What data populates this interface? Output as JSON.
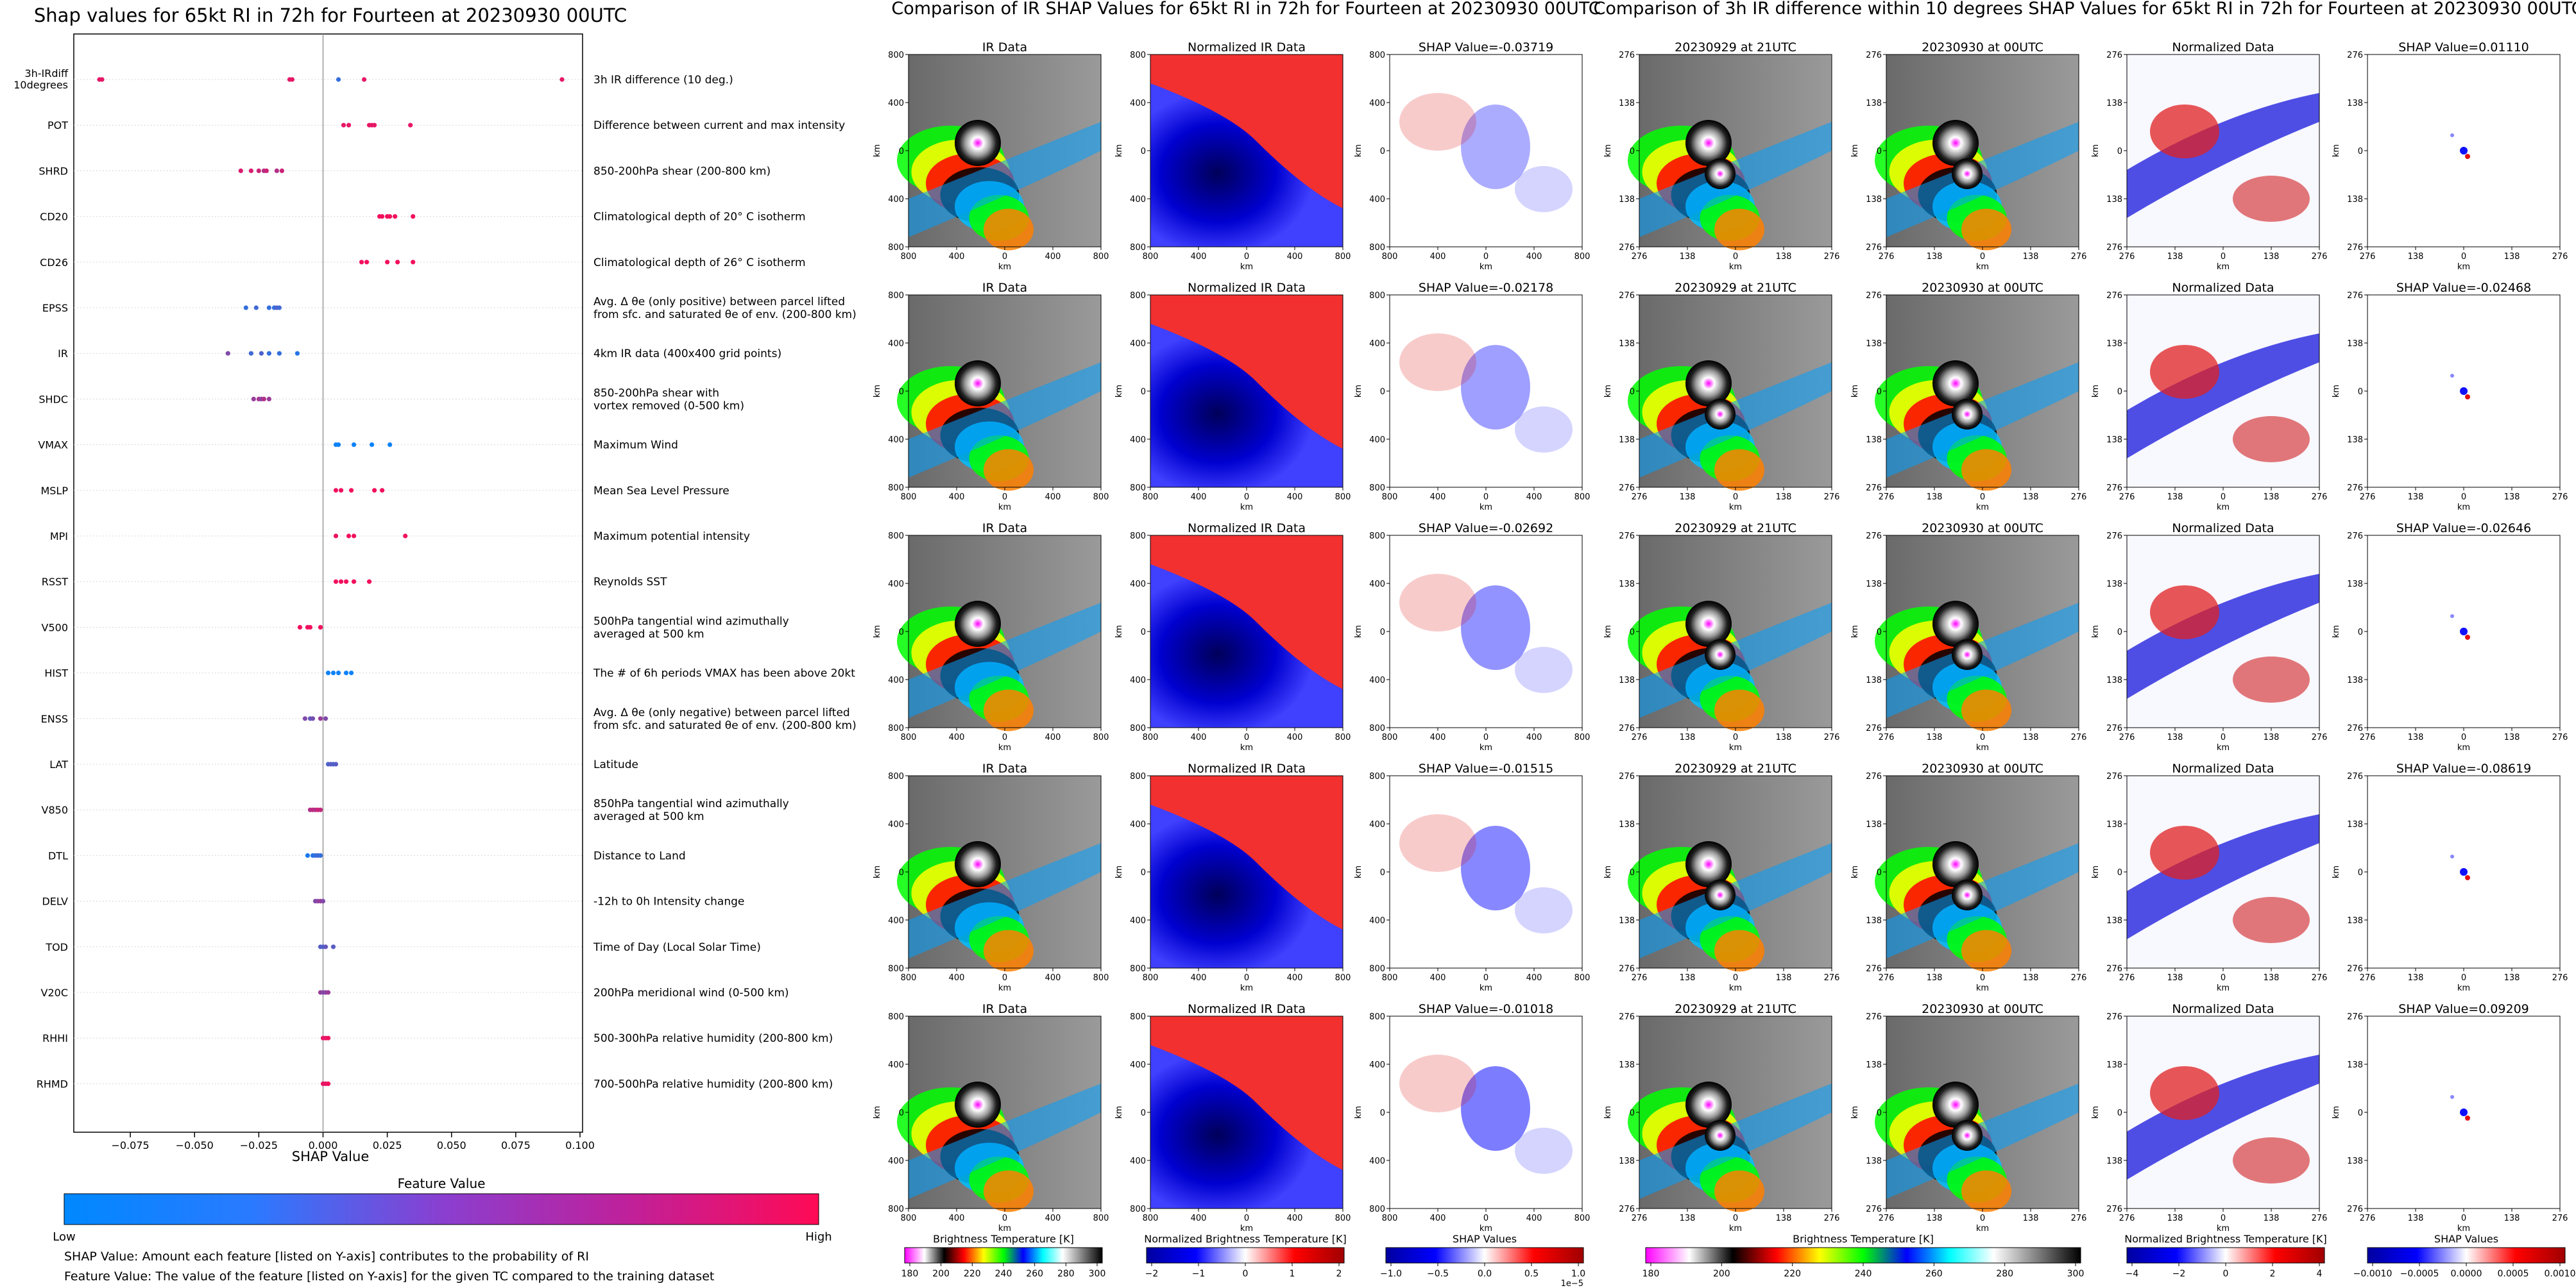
{
  "chart_data": [
    {
      "type": "scatter",
      "title": "Shap values for 65kt RI in 72h for Fourteen at 20230930 00UTC",
      "xlabel": "SHAP Value",
      "xlim": [
        -0.097,
        0.101
      ],
      "xticks": [
        -0.075,
        -0.05,
        -0.025,
        0.0,
        0.025,
        0.05,
        0.075,
        0.1
      ],
      "xtick_labels": [
        "−0.075",
        "−0.050",
        "−0.025",
        "0.000",
        "0.025",
        "0.050",
        "0.075",
        "0.100"
      ],
      "colorbar": {
        "title": "Feature Value",
        "low_label": "Low",
        "high_label": "High",
        "stops": [
          "#0088ff",
          "#2a7aff",
          "#8a3fd0",
          "#c0209a",
          "#ff0a55"
        ]
      },
      "features": [
        {
          "name": "3h-IRdiff\n10degrees",
          "desc": "3h IR difference (10 deg.)",
          "points": [
            [
              -0.087,
              0.9
            ],
            [
              -0.086,
              0.9
            ],
            [
              -0.013,
              0.9
            ],
            [
              -0.012,
              0.9
            ],
            [
              0.006,
              0.2
            ],
            [
              0.016,
              0.9
            ],
            [
              0.093,
              0.9
            ]
          ]
        },
        {
          "name": "POT",
          "desc": "Difference between current and max intensity",
          "points": [
            [
              0.008,
              0.9
            ],
            [
              0.01,
              0.9
            ],
            [
              0.018,
              0.9
            ],
            [
              0.019,
              0.9
            ],
            [
              0.02,
              0.9
            ],
            [
              0.034,
              0.9
            ]
          ]
        },
        {
          "name": "SHRD",
          "desc": "850-200hPa shear (200-800 km)",
          "points": [
            [
              -0.032,
              0.85
            ],
            [
              -0.028,
              0.85
            ],
            [
              -0.025,
              0.8
            ],
            [
              -0.023,
              0.7
            ],
            [
              -0.022,
              0.8
            ],
            [
              -0.018,
              0.7
            ],
            [
              -0.016,
              0.8
            ]
          ]
        },
        {
          "name": "CD20",
          "desc": "Climatological depth of 20° C isotherm",
          "points": [
            [
              0.022,
              0.95
            ],
            [
              0.023,
              0.95
            ],
            [
              0.025,
              0.95
            ],
            [
              0.026,
              0.95
            ],
            [
              0.028,
              0.95
            ],
            [
              0.035,
              0.95
            ]
          ]
        },
        {
          "name": "CD26",
          "desc": "Climatological depth of 26° C isotherm",
          "points": [
            [
              0.015,
              0.95
            ],
            [
              0.017,
              0.95
            ],
            [
              0.025,
              0.95
            ],
            [
              0.029,
              0.95
            ],
            [
              0.035,
              0.95
            ]
          ]
        },
        {
          "name": "EPSS",
          "desc": "Avg. Δ θe (only positive) between parcel lifted\nfrom sfc. and saturated θe of env. (200-800 km)",
          "points": [
            [
              -0.03,
              0.2
            ],
            [
              -0.026,
              0.25
            ],
            [
              -0.021,
              0.2
            ],
            [
              -0.019,
              0.2
            ],
            [
              -0.018,
              0.3
            ],
            [
              -0.017,
              0.25
            ]
          ]
        },
        {
          "name": "IR",
          "desc": "4km IR data (400x400 grid points)",
          "points": [
            [
              -0.037,
              0.5
            ],
            [
              -0.028,
              0.25
            ],
            [
              -0.024,
              0.3
            ],
            [
              -0.021,
              0.2
            ],
            [
              -0.017,
              0.2
            ],
            [
              -0.01,
              0.15
            ]
          ]
        },
        {
          "name": "SHDC",
          "desc": "850-200hPa shear with\nvortex removed (0-500 km)",
          "points": [
            [
              -0.027,
              0.6
            ],
            [
              -0.025,
              0.65
            ],
            [
              -0.024,
              0.55
            ],
            [
              -0.023,
              0.7
            ],
            [
              -0.021,
              0.6
            ]
          ]
        },
        {
          "name": "VMAX",
          "desc": "Maximum Wind",
          "points": [
            [
              0.005,
              0.05
            ],
            [
              0.006,
              0.05
            ],
            [
              0.012,
              0.05
            ],
            [
              0.019,
              0.05
            ],
            [
              0.026,
              0.05
            ]
          ]
        },
        {
          "name": "MSLP",
          "desc": "Mean Sea Level Pressure",
          "points": [
            [
              0.005,
              0.95
            ],
            [
              0.007,
              0.95
            ],
            [
              0.011,
              0.95
            ],
            [
              0.02,
              0.95
            ],
            [
              0.023,
              0.95
            ]
          ]
        },
        {
          "name": "MPI",
          "desc": "Maximum potential intensity",
          "points": [
            [
              0.005,
              0.95
            ],
            [
              0.01,
              0.95
            ],
            [
              0.012,
              0.95
            ],
            [
              0.032,
              0.95
            ]
          ]
        },
        {
          "name": "RSST",
          "desc": "Reynolds SST",
          "points": [
            [
              0.005,
              0.95
            ],
            [
              0.007,
              0.95
            ],
            [
              0.009,
              0.95
            ],
            [
              0.012,
              0.95
            ],
            [
              0.018,
              0.95
            ]
          ]
        },
        {
          "name": "V500",
          "desc": "500hPa tangential wind azimuthally\naveraged at 500 km",
          "points": [
            [
              -0.009,
              0.95
            ],
            [
              -0.006,
              0.95
            ],
            [
              -0.005,
              0.95
            ],
            [
              -0.001,
              0.95
            ]
          ]
        },
        {
          "name": "HIST",
          "desc": "The # of 6h periods VMAX has been above 20kt",
          "points": [
            [
              0.002,
              0.05
            ],
            [
              0.004,
              0.05
            ],
            [
              0.006,
              0.05
            ],
            [
              0.009,
              0.05
            ],
            [
              0.011,
              0.05
            ]
          ]
        },
        {
          "name": "ENSS",
          "desc": "Avg. Δ θe (only negative) between parcel lifted\nfrom sfc. and saturated θe of env. (200-800 km)",
          "points": [
            [
              -0.007,
              0.5
            ],
            [
              -0.005,
              0.4
            ],
            [
              -0.004,
              0.45
            ],
            [
              -0.001,
              0.6
            ],
            [
              0.001,
              0.5
            ]
          ]
        },
        {
          "name": "LAT",
          "desc": "Latitude",
          "points": [
            [
              0.002,
              0.3
            ],
            [
              0.003,
              0.35
            ],
            [
              0.004,
              0.3
            ],
            [
              0.005,
              0.35
            ]
          ]
        },
        {
          "name": "V850",
          "desc": "850hPa tangential wind azimuthally\naveraged at 500 km",
          "points": [
            [
              -0.005,
              0.7
            ],
            [
              -0.004,
              0.75
            ],
            [
              -0.003,
              0.7
            ],
            [
              -0.002,
              0.8
            ],
            [
              -0.001,
              0.75
            ]
          ]
        },
        {
          "name": "DTL",
          "desc": "Distance to Land",
          "points": [
            [
              -0.006,
              0.1
            ],
            [
              -0.004,
              0.15
            ],
            [
              -0.003,
              0.2
            ],
            [
              -0.002,
              0.25
            ],
            [
              -0.001,
              0.2
            ]
          ]
        },
        {
          "name": "DELV",
          "desc": "-12h to 0h Intensity change",
          "points": [
            [
              -0.003,
              0.5
            ],
            [
              -0.002,
              0.55
            ],
            [
              -0.001,
              0.6
            ],
            [
              0.0,
              0.5
            ]
          ]
        },
        {
          "name": "TOD",
          "desc": "Time of Day (Local Solar Time)",
          "points": [
            [
              -0.001,
              0.35
            ],
            [
              0.0,
              0.3
            ],
            [
              0.001,
              0.4
            ],
            [
              0.004,
              0.35
            ]
          ]
        },
        {
          "name": "V20C",
          "desc": "200hPa meridional wind (0-500 km)",
          "points": [
            [
              -0.001,
              0.6
            ],
            [
              0.0,
              0.5
            ],
            [
              0.001,
              0.55
            ],
            [
              0.002,
              0.6
            ]
          ]
        },
        {
          "name": "RHHI",
          "desc": "500-300hPa relative humidity (200-800 km)",
          "points": [
            [
              0.0,
              0.9
            ],
            [
              0.001,
              0.9
            ],
            [
              0.002,
              0.95
            ]
          ]
        },
        {
          "name": "RHMD",
          "desc": "700-500hPa relative humidity (200-800 km)",
          "points": [
            [
              0.0,
              0.9
            ],
            [
              0.001,
              0.9
            ],
            [
              0.002,
              0.95
            ]
          ]
        }
      ]
    },
    {
      "type": "heatmap",
      "title": "Comparison of IR SHAP Values for 65kt RI in 72h for Fourteen at 20230930 00UTC",
      "column_titles": [
        "IR Data",
        "Normalized IR Data"
      ],
      "shap_titles": [
        "SHAP Value=-0.03719",
        "SHAP Value=-0.02178",
        "SHAP Value=-0.02692",
        "SHAP Value=-0.01515",
        "SHAP Value=-0.01018"
      ],
      "axis_label": "km",
      "yticks": [
        "800",
        "400",
        "0",
        "400",
        "800"
      ],
      "xticks": [
        "800",
        "400",
        "0",
        "400",
        "800"
      ]
    },
    {
      "type": "heatmap",
      "title": "Comparison of 3h IR difference within 10 degrees SHAP Values for 65kt RI in 72h for Fourteen at 20230930 00UTC",
      "column_titles": [
        "20230929 at 21UTC",
        "20230930 at 00UTC",
        "Normalized Data"
      ],
      "shap_titles": [
        "SHAP Value=0.01110",
        "SHAP Value=-0.02468",
        "SHAP Value=-0.02646",
        "SHAP Value=-0.08619",
        "SHAP Value=0.09209"
      ],
      "axis_label": "km",
      "yticks": [
        "276",
        "138",
        "0",
        "138",
        "276"
      ],
      "xticks": [
        "276",
        "138",
        "0",
        "138",
        "276"
      ]
    }
  ],
  "footnotes": {
    "line1": "SHAP Value: Amount each feature [listed on Y-axis] contributes to the probability of RI",
    "line2": "Feature Value: The value of the feature [listed on Y-axis] for the given TC compared to the training dataset"
  },
  "colorbars": [
    {
      "label": "Brightness Temperature [K]",
      "ticks": [
        "180",
        "200",
        "220",
        "240",
        "260",
        "280",
        "300"
      ],
      "offset": ""
    },
    {
      "label": "Normalized Brightness Temperature [K]",
      "ticks": [
        "−2",
        "−1",
        "0",
        "1",
        "2"
      ],
      "offset": ""
    },
    {
      "label": "SHAP Values",
      "ticks": [
        "−1.0",
        "−0.5",
        "0.0",
        "0.5",
        "1.0"
      ],
      "offset": "1e−5"
    },
    {
      "label": "Brightness Temperature [K]",
      "ticks": [
        "180",
        "200",
        "220",
        "240",
        "260",
        "280",
        "300"
      ],
      "offset": ""
    },
    {
      "label": "Normalized Brightness Temperature [K]",
      "ticks": [
        "−4",
        "−2",
        "0",
        "2",
        "4"
      ],
      "offset": ""
    },
    {
      "label": "SHAP Values",
      "ticks": [
        "−0.0010",
        "−0.0005",
        "0.0000",
        "0.0005",
        "0.0010"
      ],
      "offset": ""
    }
  ],
  "colors": {
    "low": "#0088ff",
    "high": "#ff0a55",
    "shap_neg": "#1010ff",
    "shap_pos": "#e01010",
    "ir_cmap": [
      "#ff00ff",
      "#ffffff",
      "#000000",
      "#ff0000",
      "#ffff00",
      "#00ff00",
      "#0000ff",
      "#00ffff",
      "#ffffff",
      "#808080",
      "#000000"
    ],
    "bwr": [
      "#0000a0",
      "#0000ff",
      "#ffffff",
      "#ff0000",
      "#a00000"
    ]
  }
}
